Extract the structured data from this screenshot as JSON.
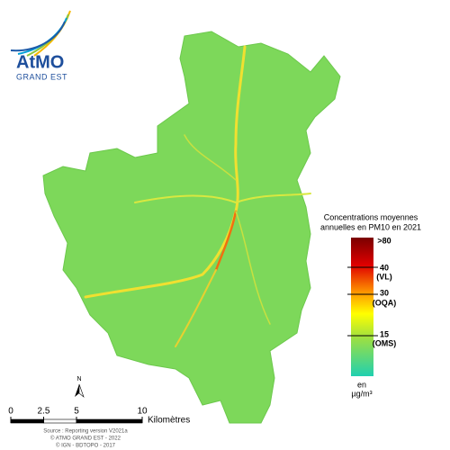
{
  "logo": {
    "name": "AtMO",
    "region": "GRAND EST"
  },
  "legend": {
    "title_line1": "Concentrations moyennes",
    "title_line2": "annuelles en PM10 en 2021",
    "labels": [
      ">80",
      "40",
      "(VL)",
      "30",
      "(OQA)",
      "15",
      "(OMS)"
    ],
    "unit_line1": "en",
    "unit_line2": "µg/m³"
  },
  "north": "N",
  "scale_bar": {
    "ticks": [
      0,
      2.5,
      5,
      10
    ],
    "unit": "Kilomètres"
  },
  "source": [
    "Source : Reporting version V2021a",
    "© ATMO GRAND EST - 2022",
    "© IGN - BDTOPO - 2017"
  ]
}
